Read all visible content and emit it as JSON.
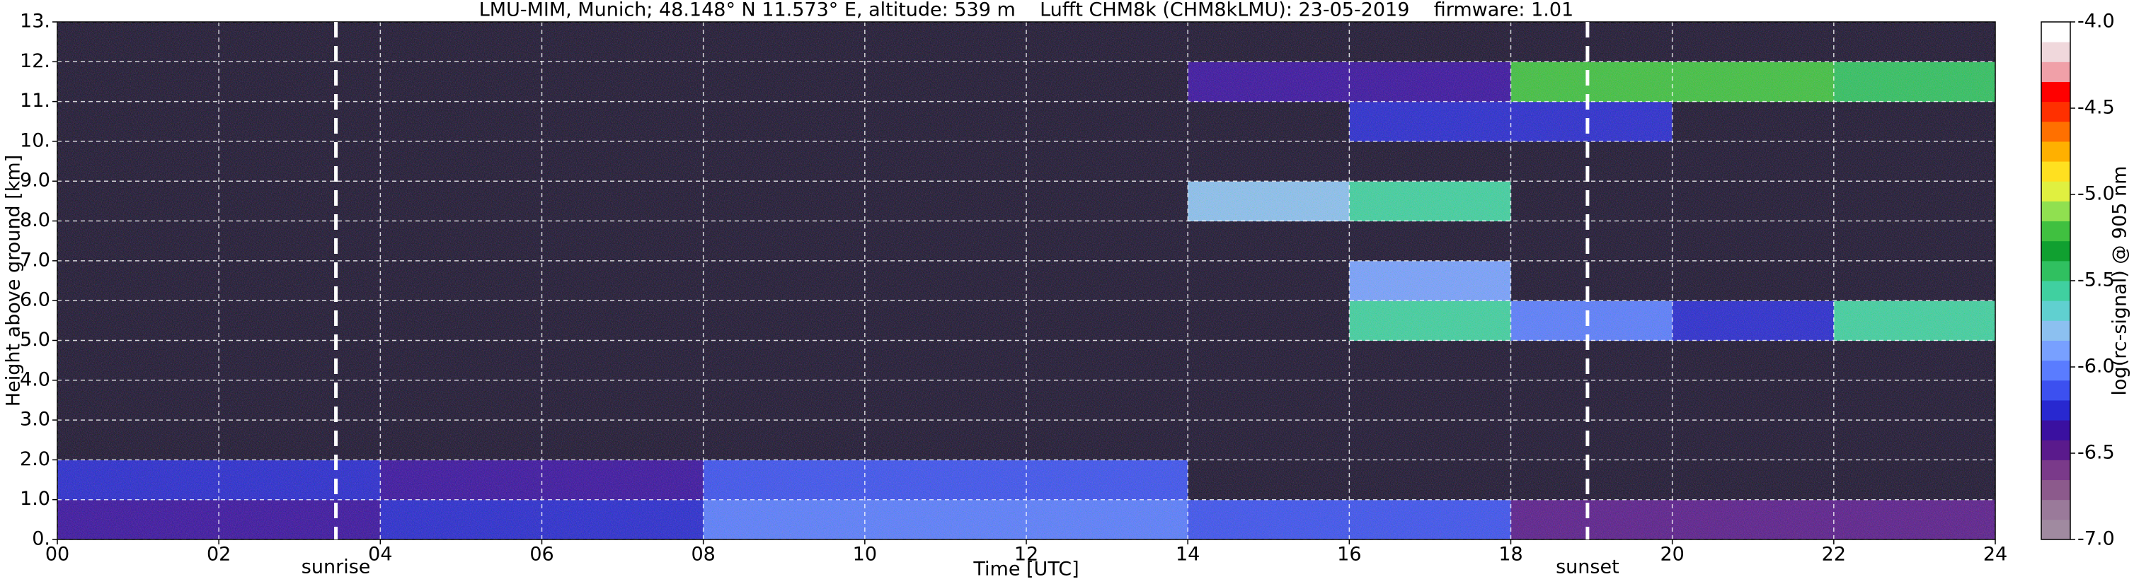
{
  "chart_data": {
    "type": "heatmap",
    "title": "LMU-MIM, Munich; 48.148° N 11.573° E, altitude: 539 m    Lufft CHM8k (CHM8kLMU): 23-05-2019    firmware: 1.01",
    "xlabel": "Time [UTC]",
    "ylabel": "Height above ground [km]",
    "colorbar_label": "log(rc-signal) @ 905 nm",
    "x": [
      0,
      2,
      4,
      6,
      8,
      10,
      12,
      14,
      16,
      18,
      20,
      22,
      24
    ],
    "y": [
      0,
      1,
      2,
      3,
      4,
      5,
      6,
      7,
      8,
      9,
      10,
      11,
      12,
      13
    ],
    "z": [
      [
        -6.4,
        -6.4,
        -6.3,
        -6.2,
        -6.0,
        -6.0,
        -6.0,
        -6.1,
        -6.1,
        -6.5,
        -6.5,
        -6.5
      ],
      [
        -6.2,
        -6.3,
        -6.4,
        -6.4,
        -6.1,
        -6.1,
        -6.1,
        -7.2,
        -7.2,
        -7.2,
        -7.2,
        -7.2
      ],
      [
        -7.2,
        -7.2,
        -7.2,
        -7.2,
        -7.2,
        -7.2,
        -7.2,
        -7.2,
        -7.2,
        -7.2,
        -7.2,
        -7.2
      ],
      [
        -7.2,
        -7.2,
        -7.2,
        -7.2,
        -7.2,
        -7.2,
        -7.2,
        -7.2,
        -7.2,
        -7.2,
        -7.2,
        -7.2
      ],
      [
        -7.2,
        -7.2,
        -7.2,
        -7.2,
        -7.2,
        -7.2,
        -7.2,
        -7.2,
        -7.2,
        -7.2,
        -7.2,
        -7.2
      ],
      [
        -7.2,
        -7.2,
        -7.2,
        -7.2,
        -7.2,
        -7.2,
        -7.2,
        -7.2,
        -5.6,
        -6.0,
        -6.2,
        -5.6
      ],
      [
        -7.2,
        -7.2,
        -7.2,
        -7.2,
        -7.2,
        -7.2,
        -7.2,
        -7.2,
        -5.9,
        -7.2,
        -7.2,
        -7.2
      ],
      [
        -7.2,
        -7.2,
        -7.2,
        -7.2,
        -7.2,
        -7.2,
        -7.2,
        -7.2,
        -7.2,
        -7.2,
        -7.2,
        -7.2
      ],
      [
        -7.2,
        -7.2,
        -7.2,
        -7.2,
        -7.2,
        -7.2,
        -7.2,
        -5.8,
        -5.6,
        -7.2,
        -7.2,
        -7.2
      ],
      [
        -7.2,
        -7.2,
        -7.2,
        -7.2,
        -7.2,
        -7.2,
        -7.2,
        -7.2,
        -7.2,
        -7.2,
        -7.2,
        -7.2
      ],
      [
        -7.2,
        -7.2,
        -7.2,
        -7.2,
        -7.2,
        -7.2,
        -7.2,
        -7.2,
        -6.3,
        -6.2,
        -7.2,
        -7.2
      ],
      [
        -7.2,
        -7.2,
        -7.2,
        -7.2,
        -7.2,
        -7.2,
        -7.2,
        -6.4,
        -6.4,
        -5.2,
        -5.2,
        -5.5
      ],
      [
        -7.2,
        -7.2,
        -7.2,
        -7.2,
        -7.2,
        -7.2,
        -7.2,
        -7.2,
        -7.2,
        -7.2,
        -7.2,
        -7.2
      ]
    ],
    "xlim": [
      0,
      24
    ],
    "ylim": [
      0,
      13
    ],
    "clim": [
      -7,
      -4
    ],
    "xticks": [
      {
        "value": 0,
        "label": "00"
      },
      {
        "value": 2,
        "label": "02"
      },
      {
        "value": 4,
        "label": "04"
      },
      {
        "value": 6,
        "label": "06"
      },
      {
        "value": 8,
        "label": "08"
      },
      10,
      12,
      14,
      16,
      18,
      20,
      22,
      24
    ],
    "yticks": [
      {
        "value": 0,
        "label": "0."
      },
      {
        "value": 1,
        "label": "1.0"
      },
      {
        "value": 2,
        "label": "2.0"
      },
      {
        "value": 3,
        "label": "3.0"
      },
      {
        "value": 4,
        "label": "4.0"
      },
      {
        "value": 5,
        "label": "5.0"
      },
      {
        "value": 6,
        "label": "6.0"
      },
      {
        "value": 7,
        "label": "7.0"
      },
      {
        "value": 8,
        "label": "8.0"
      },
      {
        "value": 9,
        "label": "9.0"
      },
      {
        "value": 10,
        "label": "10."
      },
      {
        "value": 11,
        "label": "11."
      },
      {
        "value": 12,
        "label": "12."
      },
      {
        "value": 13,
        "label": "13."
      }
    ],
    "cticks": [
      {
        "value": -7,
        "label": "-7.0"
      },
      -6.5,
      {
        "value": -6,
        "label": "-6.0"
      },
      -5.5,
      {
        "value": -5,
        "label": "-5.0"
      },
      -4.5,
      {
        "value": -4,
        "label": "-4.0"
      }
    ],
    "colors": [
      "#a08aa0",
      "#9a7a9a",
      "#8c5a8c",
      "#7a3a8a",
      "#5a1a8c",
      "#3a10a0",
      "#2828d0",
      "#3c50f0",
      "#5a7cff",
      "#78a0ff",
      "#8cc0f0",
      "#60d0d0",
      "#40d0a0",
      "#30c060",
      "#10a030",
      "#40c040",
      "#90e050",
      "#e0f040",
      "#ffe020",
      "#ffb000",
      "#ff7000",
      "#ff3000",
      "#ff0000",
      "#f0a0a8",
      "#f0d8dc",
      "#ffffff"
    ],
    "under_color": "#1c1230",
    "grid": true,
    "annotations": [
      {
        "text": "sunrise",
        "x": 3.45
      },
      {
        "text": "sunset",
        "x": 18.95
      }
    ]
  }
}
